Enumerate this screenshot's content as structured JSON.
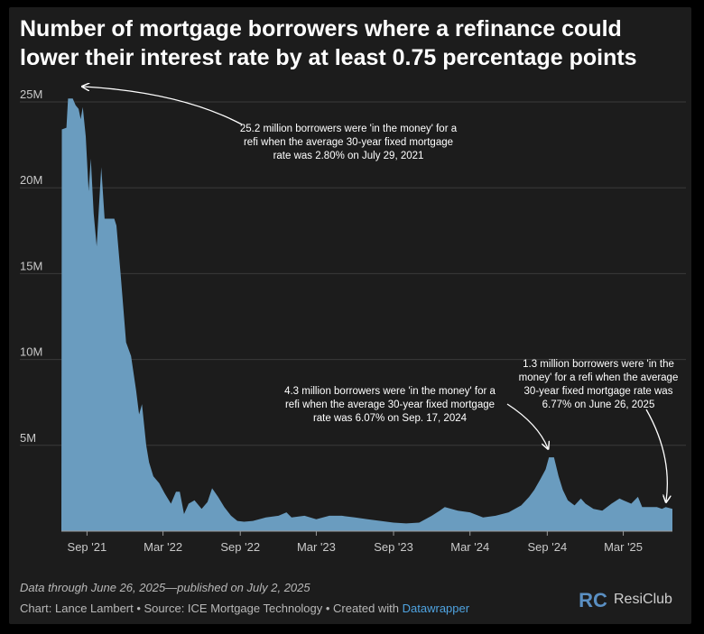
{
  "chart_data": {
    "type": "area",
    "title_line1": "Number of mortgage borrowers where a refinance could",
    "title_line2": "lower their interest rate by at least 0.75 percentage points",
    "y_unit": "millions of borrowers",
    "ylim": [
      0,
      26
    ],
    "y_ticks": [
      {
        "value": 5,
        "label": "5M"
      },
      {
        "value": 10,
        "label": "10M"
      },
      {
        "value": 15,
        "label": "15M"
      },
      {
        "value": 20,
        "label": "20M"
      },
      {
        "value": 25,
        "label": "25M"
      }
    ],
    "xlim": [
      "2021-07-02",
      "2025-06-26"
    ],
    "x_ticks": [
      {
        "date": "2021-09-01",
        "label": "Sep '21"
      },
      {
        "date": "2022-03-01",
        "label": "Mar '22"
      },
      {
        "date": "2022-09-01",
        "label": "Sep '22"
      },
      {
        "date": "2023-03-01",
        "label": "Mar '23"
      },
      {
        "date": "2023-09-01",
        "label": "Sep '23"
      },
      {
        "date": "2024-03-01",
        "label": "Mar '24"
      },
      {
        "date": "2024-09-01",
        "label": "Sep '24"
      },
      {
        "date": "2025-03-01",
        "label": "Mar '25"
      }
    ],
    "fill_color": "#6a9cbf",
    "points": [
      [
        "2021-07-02",
        0
      ],
      [
        "2021-07-03",
        23.4
      ],
      [
        "2021-07-14",
        23.5
      ],
      [
        "2021-07-18",
        25.2
      ],
      [
        "2021-07-29",
        25.2
      ],
      [
        "2021-08-05",
        24.8
      ],
      [
        "2021-08-12",
        24.6
      ],
      [
        "2021-08-17",
        24.0
      ],
      [
        "2021-08-22",
        24.7
      ],
      [
        "2021-08-29",
        23.0
      ],
      [
        "2021-09-05",
        19.8
      ],
      [
        "2021-09-10",
        21.7
      ],
      [
        "2021-09-17",
        18.5
      ],
      [
        "2021-09-24",
        16.6
      ],
      [
        "2021-10-05",
        21.2
      ],
      [
        "2021-10-13",
        18.2
      ],
      [
        "2021-10-25",
        18.2
      ],
      [
        "2021-11-05",
        18.2
      ],
      [
        "2021-11-10",
        17.8
      ],
      [
        "2021-11-20",
        15.0
      ],
      [
        "2021-12-03",
        11.0
      ],
      [
        "2021-12-15",
        10.2
      ],
      [
        "2021-12-27",
        8.2
      ],
      [
        "2022-01-03",
        6.8
      ],
      [
        "2022-01-10",
        7.4
      ],
      [
        "2022-01-20",
        5.0
      ],
      [
        "2022-01-27",
        4.0
      ],
      [
        "2022-02-06",
        3.2
      ],
      [
        "2022-02-20",
        2.8
      ],
      [
        "2022-03-05",
        2.2
      ],
      [
        "2022-03-20",
        1.6
      ],
      [
        "2022-04-01",
        2.3
      ],
      [
        "2022-04-10",
        2.3
      ],
      [
        "2022-04-20",
        1.0
      ],
      [
        "2022-05-01",
        1.6
      ],
      [
        "2022-05-15",
        1.8
      ],
      [
        "2022-06-01",
        1.3
      ],
      [
        "2022-06-15",
        1.7
      ],
      [
        "2022-06-26",
        2.5
      ],
      [
        "2022-07-10",
        2.0
      ],
      [
        "2022-07-25",
        1.4
      ],
      [
        "2022-08-10",
        0.9
      ],
      [
        "2022-08-25",
        0.6
      ],
      [
        "2022-09-10",
        0.55
      ],
      [
        "2022-10-01",
        0.6
      ],
      [
        "2022-11-01",
        0.8
      ],
      [
        "2022-12-01",
        0.9
      ],
      [
        "2022-12-20",
        1.1
      ],
      [
        "2023-01-01",
        0.8
      ],
      [
        "2023-02-01",
        0.9
      ],
      [
        "2023-03-01",
        0.7
      ],
      [
        "2023-04-01",
        0.9
      ],
      [
        "2023-05-01",
        0.9
      ],
      [
        "2023-06-01",
        0.8
      ],
      [
        "2023-07-01",
        0.7
      ],
      [
        "2023-08-01",
        0.6
      ],
      [
        "2023-09-01",
        0.5
      ],
      [
        "2023-10-01",
        0.45
      ],
      [
        "2023-11-01",
        0.5
      ],
      [
        "2023-12-01",
        0.9
      ],
      [
        "2023-12-20",
        1.2
      ],
      [
        "2024-01-01",
        1.4
      ],
      [
        "2024-02-01",
        1.2
      ],
      [
        "2024-03-01",
        1.1
      ],
      [
        "2024-04-01",
        0.8
      ],
      [
        "2024-05-01",
        0.9
      ],
      [
        "2024-06-01",
        1.1
      ],
      [
        "2024-07-01",
        1.5
      ],
      [
        "2024-07-20",
        2.0
      ],
      [
        "2024-08-01",
        2.4
      ],
      [
        "2024-08-15",
        3.0
      ],
      [
        "2024-08-28",
        3.6
      ],
      [
        "2024-09-05",
        4.3
      ],
      [
        "2024-09-17",
        4.3
      ],
      [
        "2024-09-28",
        3.2
      ],
      [
        "2024-10-08",
        2.4
      ],
      [
        "2024-10-20",
        1.8
      ],
      [
        "2024-11-05",
        1.5
      ],
      [
        "2024-11-20",
        1.9
      ],
      [
        "2024-12-01",
        1.6
      ],
      [
        "2024-12-20",
        1.3
      ],
      [
        "2025-01-10",
        1.2
      ],
      [
        "2025-02-01",
        1.6
      ],
      [
        "2025-02-20",
        1.9
      ],
      [
        "2025-03-01",
        1.8
      ],
      [
        "2025-03-20",
        1.6
      ],
      [
        "2025-04-05",
        2.0
      ],
      [
        "2025-04-15",
        1.4
      ],
      [
        "2025-05-01",
        1.4
      ],
      [
        "2025-05-20",
        1.4
      ],
      [
        "2025-06-01",
        1.3
      ],
      [
        "2025-06-10",
        1.4
      ],
      [
        "2025-06-26",
        1.3
      ]
    ],
    "annotations": [
      {
        "lines": [
          "25.2 million borrowers were 'in the money' for a",
          "refi when the average 30-year fixed mortgage",
          "rate was 2.80% on July 29, 2021"
        ],
        "target": [
          "2021-07-29",
          25.2
        ]
      },
      {
        "lines": [
          "4.3 million borrowers were 'in the money' for a",
          "refi when the average 30-year fixed mortgage",
          "rate was 6.07% on Sep. 17, 2024"
        ],
        "target": [
          "2024-09-17",
          4.3
        ]
      },
      {
        "lines": [
          "1.3 million borrowers were 'in the",
          "money' for a refi when the average",
          "30-year fixed mortgage rate was",
          "6.77% on June 26, 2025"
        ],
        "target": [
          "2025-06-26",
          1.3
        ]
      }
    ]
  },
  "footer": {
    "note": "Data through June 26, 2025—published on July 2, 2025",
    "credit_prefix": "Chart: Lance Lambert • Source: ICE Mortgage Technology • Created with ",
    "credit_link": "Datawrapper"
  },
  "logo": {
    "word": "ResiClub",
    "mark_letters": "RC",
    "mark_color": "#5a8fc2"
  }
}
